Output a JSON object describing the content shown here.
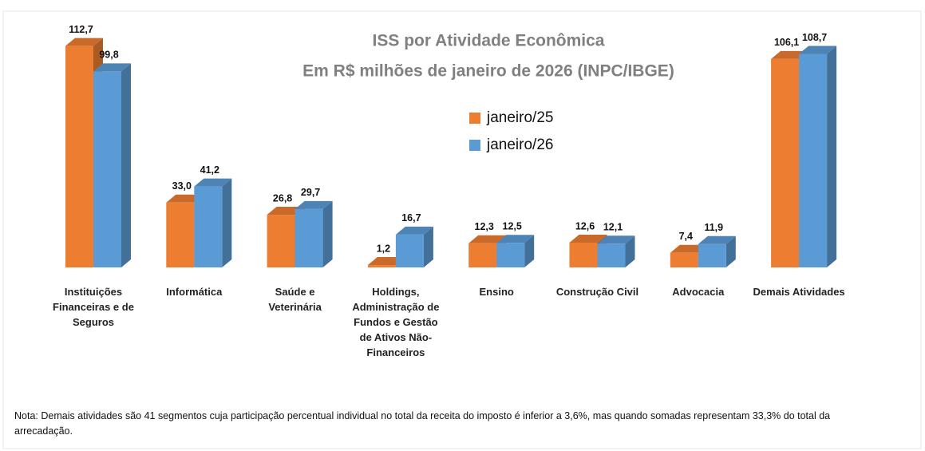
{
  "chart_data": {
    "type": "bar3d",
    "title": "ISS por Atividade Econômica",
    "subtitle": "Em R$ milhões de janeiro de 2026 (INPC/IBGE)",
    "categories": [
      "Instituições Financeiras e de Seguros",
      "Informática",
      "Saúde e Veterinária",
      "Holdings, Administração de Fundos e Gestão de Ativos Não-Financeiros",
      "Ensino",
      "Construção Civil",
      "Advocacia",
      "Demais Atividades"
    ],
    "series": [
      {
        "name": "janeiro/25",
        "color": "#ed7d31",
        "values": [
          112.7,
          33.0,
          26.8,
          1.2,
          12.3,
          12.6,
          7.4,
          106.1
        ],
        "value_labels": [
          "112,7",
          "33,0",
          "26,8",
          "1,2",
          "12,3",
          "12,6",
          "7,4",
          "106,1"
        ]
      },
      {
        "name": "janeiro/26",
        "color": "#5b9bd5",
        "values": [
          99.8,
          41.2,
          29.7,
          16.7,
          12.5,
          12.1,
          11.9,
          108.7
        ],
        "value_labels": [
          "99,8",
          "41,2",
          "29,7",
          "16,7",
          "12,5",
          "12,1",
          "11,9",
          "108,7"
        ]
      }
    ],
    "ylim": [
      0,
      115
    ],
    "legend": "top-center",
    "note": "Nota: Demais atividades são 41 segmentos cuja participação percentual individual no total da receita do imposto é inferior a 3,6%, mas quando somadas representam 33,3% do total da arrecadação."
  }
}
